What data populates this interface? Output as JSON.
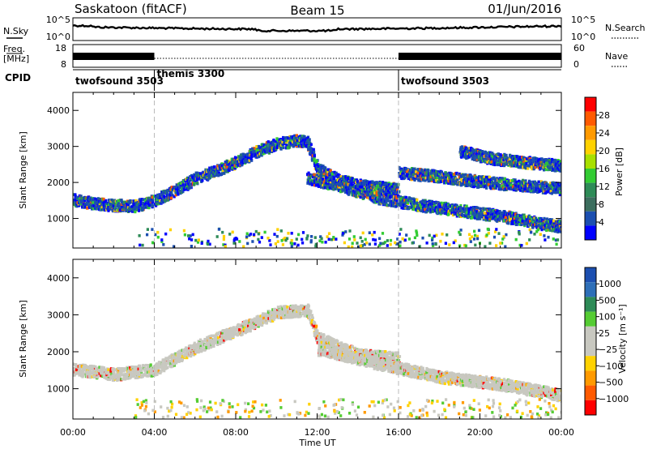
{
  "header": {
    "site": "Saskatoon (fitACF)",
    "beam": "Beam 15",
    "date": "01/Jun/2016"
  },
  "panel_labels": {
    "n_sky": "N.Sky",
    "n_search": "N.Search",
    "freq_line1": "Freq.",
    "freq_line2": "[MHz]",
    "nave": "Nave",
    "cpid": "CPID"
  },
  "x_axis": {
    "title": "Time UT",
    "ticks": [
      "00:00",
      "04:00",
      "08:00",
      "12:00",
      "16:00",
      "20:00",
      "00:00"
    ]
  },
  "noise_panel": {
    "left_ticks": [
      "10^5",
      "10^0"
    ],
    "right_ticks": [
      "10^5",
      "10^0"
    ]
  },
  "freq_panel": {
    "left_ticks": [
      "18",
      "8"
    ],
    "right_ticks": [
      "60",
      "0"
    ]
  },
  "cpid_segments": [
    {
      "label": "twofsound 3503",
      "start_hour": 0,
      "end_hour": 4
    },
    {
      "label": "themis 3300",
      "start_hour": 4,
      "end_hour": 16
    },
    {
      "label": "twofsound 3503",
      "start_hour": 16,
      "end_hour": 24
    }
  ],
  "chart_data": [
    {
      "type": "heatmap",
      "title": "",
      "xlabel": "Time UT",
      "ylabel": "Slant Range [km]",
      "xlim": [
        0,
        24
      ],
      "ylim": [
        180,
        4500
      ],
      "y_ticks": [
        1000,
        2000,
        3000,
        4000
      ],
      "colorbar": {
        "label": "Power [dB]",
        "ticks": [
          "28",
          "24",
          "20",
          "16",
          "12",
          "8",
          "4"
        ],
        "colors": [
          "#ff0000",
          "#ff5a00",
          "#ff9a00",
          "#ffd200",
          "#a8e000",
          "#33cc33",
          "#2e8b57",
          "#3c6e5e",
          "#1c4fb0",
          "#0000ff"
        ]
      },
      "series": [
        {
          "name": "",
          "x": [
            0,
            1,
            2,
            3,
            3.5,
            4,
            5,
            6,
            7,
            8,
            9,
            10,
            11,
            11.5,
            12,
            13,
            14,
            15,
            16
          ],
          "y": [
            1550,
            1450,
            1400,
            1380,
            1450,
            1550,
            1800,
            2150,
            2350,
            2600,
            2900,
            3100,
            3200,
            3150,
            2400,
            2100,
            1950,
            1900,
            1850
          ]
        },
        {
          "name": "",
          "x": [
            11.5,
            13,
            15,
            17,
            19,
            21,
            23,
            24
          ],
          "y": [
            2150,
            1950,
            1600,
            1400,
            1250,
            1100,
            900,
            800
          ]
        },
        {
          "name": "",
          "x": [
            16,
            18,
            20,
            22,
            24
          ],
          "y": [
            2300,
            2200,
            2050,
            1950,
            1850
          ]
        },
        {
          "name": "",
          "x": [
            19,
            20.5,
            22,
            24
          ],
          "y": [
            2900,
            2700,
            2600,
            2500
          ]
        }
      ]
    },
    {
      "type": "heatmap",
      "title": "",
      "xlabel": "Time UT",
      "ylabel": "Slant Range [km]",
      "xlim": [
        0,
        24
      ],
      "ylim": [
        180,
        4500
      ],
      "y_ticks": [
        1000,
        2000,
        3000,
        4000
      ],
      "colorbar": {
        "label": "Velocity [m s⁻¹]",
        "ticks": [
          "1000",
          "500",
          "100",
          "25",
          "−25",
          "−100",
          "−500",
          "−1000"
        ],
        "colors": [
          "#1c4fb0",
          "#2e6fb8",
          "#2e8b57",
          "#55cc33",
          "#c8c8c0",
          "#c8c8c0",
          "#ffd200",
          "#ff9a00",
          "#ff5a00",
          "#ff0000"
        ]
      },
      "series": [
        {
          "name": "",
          "x": [
            0,
            2,
            4,
            6,
            8,
            10,
            11.5,
            12,
            14,
            16
          ],
          "y": [
            1550,
            1420,
            1550,
            2150,
            2600,
            3100,
            3150,
            2400,
            1950,
            1850
          ]
        },
        {
          "name": "",
          "x": [
            12,
            15,
            18,
            21,
            24
          ],
          "y": [
            2100,
            1700,
            1350,
            1150,
            850
          ]
        }
      ]
    }
  ]
}
